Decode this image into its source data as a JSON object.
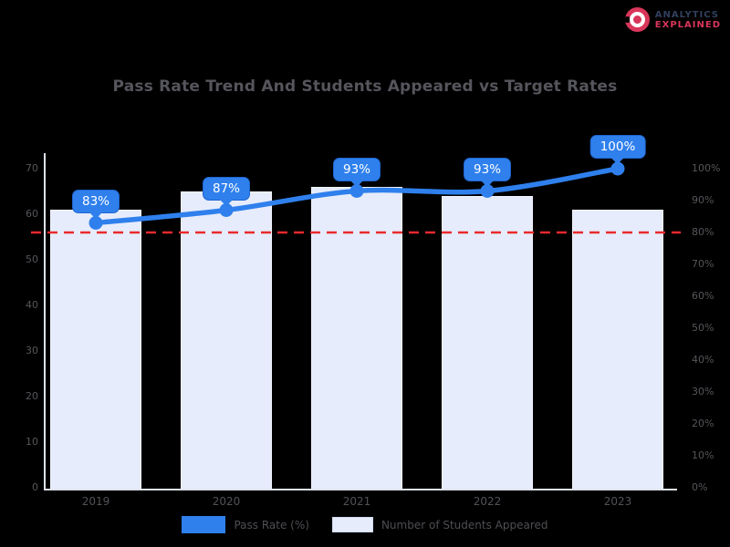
{
  "page": {
    "background": "#000000"
  },
  "brand": {
    "icon": "red-globe-logo",
    "line1": "ANALYTICS",
    "line2": "EXPLAINED"
  },
  "chart_data": {
    "type": "bar",
    "subtype": "combo-bar-line-dual-axis",
    "title": "Pass Rate Trend And Students Appeared vs Target Rates",
    "categories": [
      "2019",
      "2020",
      "2021",
      "2022",
      "2023"
    ],
    "series": [
      {
        "name": "Pass Rate (%)",
        "type": "line",
        "y_axis": "right",
        "values": [
          83,
          87,
          93,
          93,
          100
        ],
        "point_labels": [
          "83%",
          "87%",
          "93%",
          "93%",
          "100%"
        ],
        "color": "#2f80ed"
      },
      {
        "name": "Number of Students Appeared",
        "type": "bar",
        "y_axis": "left",
        "values": [
          61,
          65,
          66,
          64,
          61
        ],
        "color": "#e6ecfb"
      }
    ],
    "target_line": {
      "value": 80,
      "y_axis": "right",
      "label": "80% target",
      "color": "#ea2a2e",
      "style": "dashed"
    },
    "axes": {
      "left": {
        "ticks": [
          0,
          10,
          20,
          30,
          40,
          50,
          60,
          70
        ],
        "range": [
          0,
          70
        ]
      },
      "right": {
        "ticks": [
          "0%",
          "10%",
          "20%",
          "30%",
          "40%",
          "50%",
          "60%",
          "70%",
          "80%",
          "90%",
          "100%"
        ],
        "range": [
          0,
          100
        ]
      }
    },
    "legend_position": "bottom",
    "grid": false
  },
  "colors": {
    "background": "#000000",
    "title_text": "#55555c",
    "axis_text": "#56565c",
    "axis_spine": "#dfe2ec",
    "bar_fill": "#e6ecfb",
    "line": "#2f80ed",
    "badge_bg": "#2f80ed",
    "badge_text": "#ffffff",
    "target_line": "#ea2a2e",
    "legend_text": "#4e4e54",
    "brand_dark": "#32405e",
    "brand_red": "#d8365a"
  }
}
